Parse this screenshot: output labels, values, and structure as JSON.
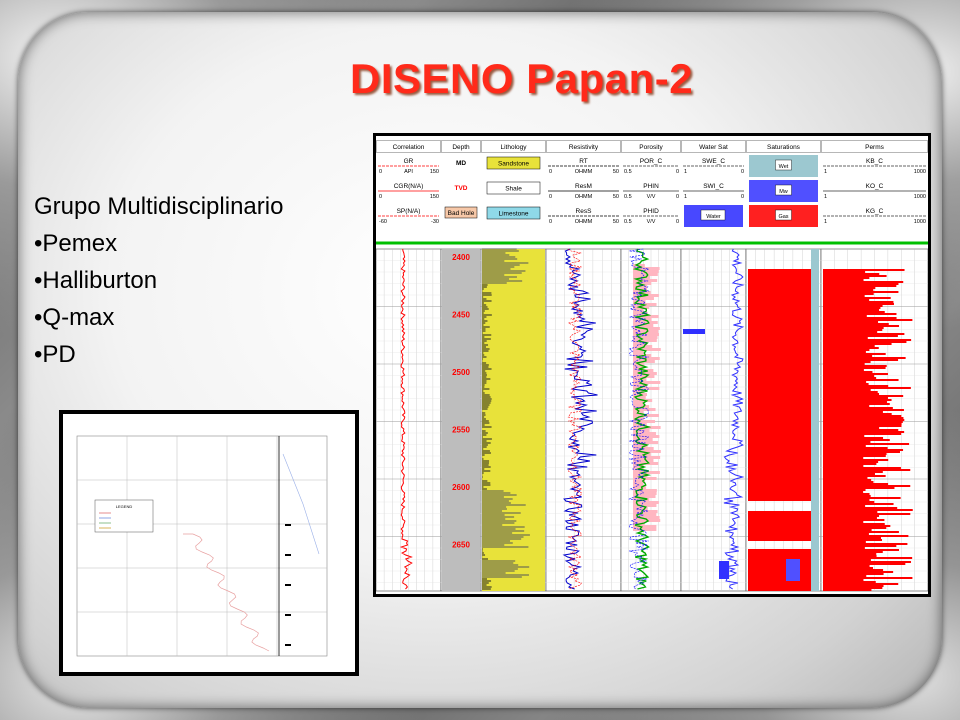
{
  "slide": {
    "title": "DISENO Papan-2",
    "bullets": [
      "Grupo Multidisciplinario",
      "•Pemex",
      "•Halliburton",
      "•Q-max",
      "•PD"
    ]
  },
  "well_log": {
    "columns": [
      "Correlation",
      "Depth",
      "Lithology",
      "Resistivity",
      "Porosity",
      "Water Sat",
      "Saturations",
      "Perms"
    ],
    "curves": {
      "correlation": [
        {
          "name": "GR",
          "min": "0",
          "unit": "API",
          "max": "150"
        },
        {
          "name": "CGR(N/A)",
          "min": "0",
          "unit": "",
          "max": "150"
        },
        {
          "name": "SP(N/A)",
          "min": "-60",
          "unit": "",
          "max": "-30"
        }
      ],
      "depth": [
        "MD",
        "TVD",
        "Bad Hole"
      ],
      "lithology": [
        "Sandstone",
        "Shale",
        "Limestone"
      ],
      "resistivity": [
        {
          "name": "RT",
          "min": "0",
          "unit": "OHMM",
          "max": "50"
        },
        {
          "name": "ResM",
          "min": "0",
          "unit": "OHMM",
          "max": "50"
        },
        {
          "name": "ResS",
          "min": "0",
          "unit": "OHMM",
          "max": "50"
        }
      ],
      "porosity": [
        {
          "name": "POR_C",
          "min": "0.5",
          "unit": "",
          "max": "0"
        },
        {
          "name": "PHIN",
          "min": "0.5",
          "unit": "V/V",
          "max": "0"
        },
        {
          "name": "PHID",
          "min": "0.5",
          "unit": "V/V",
          "max": "0"
        }
      ],
      "water_sat": [
        {
          "name": "SWE_C",
          "min": "1",
          "unit": "",
          "max": "0"
        },
        {
          "name": "SWI_C",
          "min": "1",
          "unit": "",
          "max": "0"
        },
        {
          "name": "Water",
          "min": "",
          "unit": "",
          "max": ""
        }
      ],
      "saturations": [
        "Wet",
        "Mw",
        "Gas"
      ],
      "perms": [
        {
          "name": "KB_C",
          "min": "1",
          "unit": "",
          "max": "1000"
        },
        {
          "name": "KO_C",
          "min": "1",
          "unit": "",
          "max": "1000"
        },
        {
          "name": "KG_C",
          "min": "1",
          "unit": "",
          "max": "1000"
        }
      ]
    },
    "depth_ticks": [
      "2400",
      "2450",
      "2500",
      "2550",
      "2600",
      "2650"
    ],
    "colors": {
      "sandstone": "#e8e23a",
      "shale": "#9a9a9a",
      "gas": "#ff0000",
      "water": "#3030ff",
      "resistivity": "#0000cc",
      "porosity": "#00aa00"
    }
  },
  "tension_chart": {
    "legend_title": "LEGEND"
  }
}
